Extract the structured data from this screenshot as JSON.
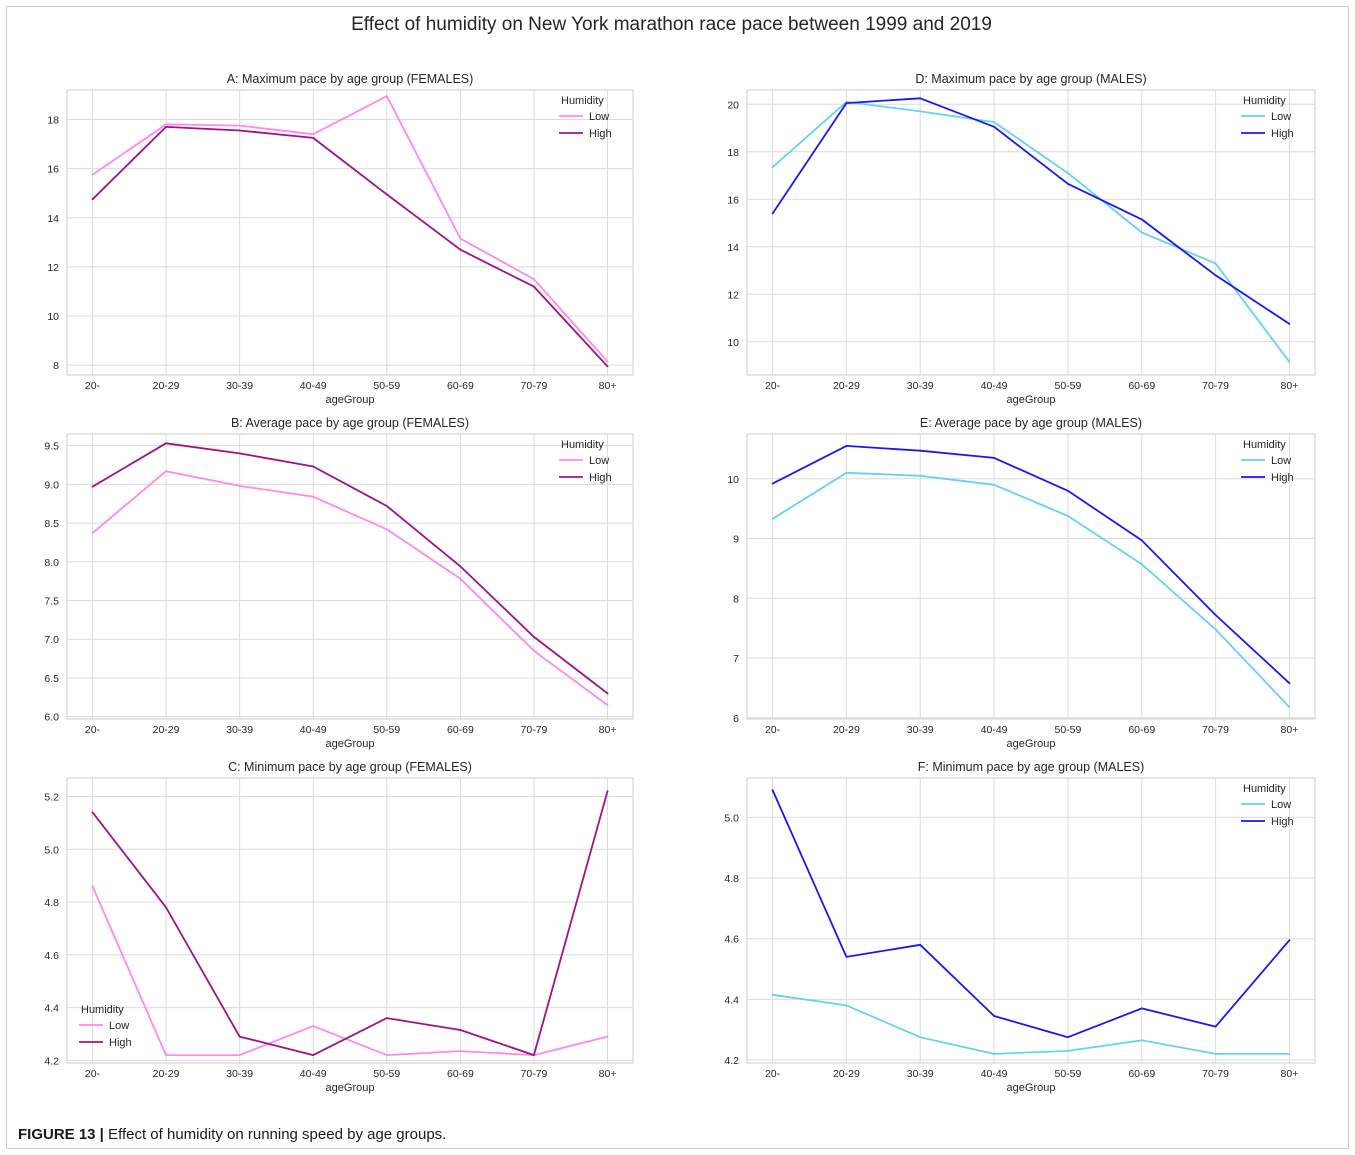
{
  "figure": {
    "suptitle": "Effect of humidity on New York marathon race pace between 1999 and 2019",
    "caption_label": "FIGURE 13 |",
    "caption_text": " Effect of humidity on running speed by age groups."
  },
  "colors": {
    "female_low": "#ff88ee",
    "female_high": "#a0128c",
    "male_low": "#66d3ee",
    "male_high": "#1a1aee",
    "grid": "#dcdcdc",
    "axis": "#cccccc"
  },
  "chart_data": [
    {
      "id": "A",
      "type": "line",
      "title": "A: Maximum pace by age group (FEMALES)",
      "xlabel": "ageGroup",
      "ylabel": "",
      "categories": [
        "20-",
        "20-29",
        "30-39",
        "40-49",
        "50-59",
        "60-69",
        "70-79",
        "80+"
      ],
      "ylim": [
        7.6,
        19.2
      ],
      "yticks": [
        8,
        10,
        12,
        14,
        16,
        18
      ],
      "ytick_labels": [
        "8",
        "10",
        "12",
        "14",
        "16",
        "18"
      ],
      "grid": true,
      "legend": {
        "title": "Humidity",
        "position": "top-right"
      },
      "series": [
        {
          "name": "Low",
          "color_key": "female_low",
          "values": [
            15.75,
            17.8,
            17.75,
            17.4,
            18.95,
            13.15,
            11.5,
            8.15
          ]
        },
        {
          "name": "High",
          "color_key": "female_high",
          "values": [
            14.75,
            17.7,
            17.55,
            17.25,
            14.95,
            12.7,
            11.2,
            7.95
          ]
        }
      ]
    },
    {
      "id": "D",
      "type": "line",
      "title": "D: Maximum pace by age group (MALES)",
      "xlabel": "ageGroup",
      "ylabel": "",
      "categories": [
        "20-",
        "20-29",
        "30-39",
        "40-49",
        "50-59",
        "60-69",
        "70-79",
        "80+"
      ],
      "ylim": [
        8.6,
        20.6
      ],
      "yticks": [
        10,
        12,
        14,
        16,
        18,
        20
      ],
      "ytick_labels": [
        "10",
        "12",
        "14",
        "16",
        "18",
        "20"
      ],
      "grid": true,
      "legend": {
        "title": "Humidity",
        "position": "top-right"
      },
      "series": [
        {
          "name": "Low",
          "color_key": "male_low",
          "values": [
            17.35,
            20.1,
            19.7,
            19.25,
            17.1,
            14.6,
            13.3,
            9.15
          ]
        },
        {
          "name": "High",
          "color_key": "male_high",
          "values": [
            15.4,
            20.05,
            20.25,
            19.05,
            16.65,
            15.15,
            12.8,
            10.75
          ]
        }
      ]
    },
    {
      "id": "B",
      "type": "line",
      "title": "B: Average pace by age group (FEMALES)",
      "xlabel": "ageGroup",
      "ylabel": "",
      "categories": [
        "20-",
        "20-29",
        "30-39",
        "40-49",
        "50-59",
        "60-69",
        "70-79",
        "80+"
      ],
      "ylim": [
        5.97,
        9.65
      ],
      "yticks": [
        6.0,
        6.5,
        7.0,
        7.5,
        8.0,
        8.5,
        9.0,
        9.5
      ],
      "ytick_labels": [
        "6.0",
        "6.5",
        "7.0",
        "7.5",
        "8.0",
        "8.5",
        "9.0",
        "9.5"
      ],
      "grid": true,
      "legend": {
        "title": "Humidity",
        "position": "top-right"
      },
      "series": [
        {
          "name": "Low",
          "color_key": "female_low",
          "values": [
            8.37,
            9.17,
            8.98,
            8.84,
            8.42,
            7.78,
            6.85,
            6.15
          ]
        },
        {
          "name": "High",
          "color_key": "female_high",
          "values": [
            8.97,
            9.53,
            9.4,
            9.23,
            8.72,
            7.94,
            7.03,
            6.3
          ]
        }
      ]
    },
    {
      "id": "E",
      "type": "line",
      "title": "E: Average pace by age group (MALES)",
      "xlabel": "ageGroup",
      "ylabel": "",
      "categories": [
        "20-",
        "20-29",
        "30-39",
        "40-49",
        "50-59",
        "60-69",
        "70-79",
        "80+"
      ],
      "ylim": [
        5.98,
        10.75
      ],
      "yticks": [
        6,
        7,
        8,
        9,
        10
      ],
      "ytick_labels": [
        "6",
        "7",
        "8",
        "9",
        "10"
      ],
      "grid": true,
      "legend": {
        "title": "Humidity",
        "position": "top-right"
      },
      "series": [
        {
          "name": "Low",
          "color_key": "male_low",
          "values": [
            9.33,
            10.1,
            10.05,
            9.9,
            9.38,
            8.57,
            7.48,
            6.18
          ]
        },
        {
          "name": "High",
          "color_key": "male_high",
          "values": [
            9.92,
            10.55,
            10.47,
            10.35,
            9.8,
            8.97,
            7.72,
            6.58
          ]
        }
      ]
    },
    {
      "id": "C",
      "type": "line",
      "title": "C: Minimum pace by age group (FEMALES)",
      "xlabel": "ageGroup",
      "ylabel": "",
      "categories": [
        "20-",
        "20-29",
        "30-39",
        "40-49",
        "50-59",
        "60-69",
        "70-79",
        "80+"
      ],
      "ylim": [
        4.19,
        5.27
      ],
      "yticks": [
        4.2,
        4.4,
        4.6,
        4.8,
        5.0,
        5.2
      ],
      "ytick_labels": [
        "4.2",
        "4.4",
        "4.6",
        "4.8",
        "5.0",
        "5.2"
      ],
      "grid": true,
      "legend": {
        "title": "Humidity",
        "position": "bottom-left"
      },
      "series": [
        {
          "name": "Low",
          "color_key": "female_low",
          "values": [
            4.86,
            4.22,
            4.22,
            4.33,
            4.22,
            4.235,
            4.22,
            4.29
          ]
        },
        {
          "name": "High",
          "color_key": "female_high",
          "values": [
            5.14,
            4.78,
            4.29,
            4.22,
            4.36,
            4.315,
            4.22,
            5.22
          ]
        }
      ]
    },
    {
      "id": "F",
      "type": "line",
      "title": "F: Minimum pace by age group (MALES)",
      "xlabel": "ageGroup",
      "ylabel": "",
      "categories": [
        "20-",
        "20-29",
        "30-39",
        "40-49",
        "50-59",
        "60-69",
        "70-79",
        "80+"
      ],
      "ylim": [
        4.19,
        5.13
      ],
      "yticks": [
        4.2,
        4.4,
        4.6,
        4.8,
        5.0
      ],
      "ytick_labels": [
        "4.2",
        "4.4",
        "4.6",
        "4.8",
        "5.0"
      ],
      "grid": true,
      "legend": {
        "title": "Humidity",
        "position": "top-right"
      },
      "series": [
        {
          "name": "Low",
          "color_key": "male_low",
          "values": [
            4.415,
            4.38,
            4.275,
            4.22,
            4.23,
            4.265,
            4.22,
            4.22
          ]
        },
        {
          "name": "High",
          "color_key": "male_high",
          "values": [
            5.09,
            4.54,
            4.58,
            4.345,
            4.275,
            4.37,
            4.31,
            4.595
          ]
        }
      ]
    }
  ]
}
